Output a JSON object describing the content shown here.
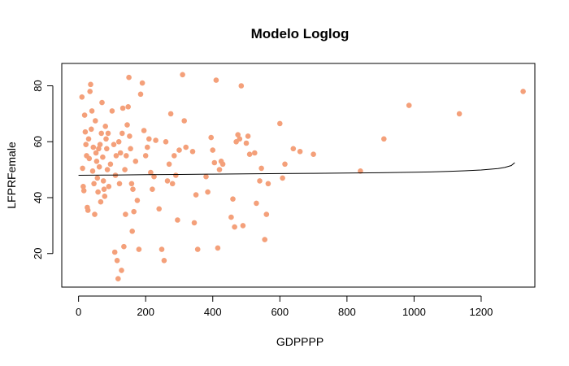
{
  "chart_data": {
    "type": "scatter",
    "title": "Modelo Loglog",
    "xlabel": "GDPPPP",
    "ylabel": "LFPRFemale",
    "xlim": [
      -50,
      1360
    ],
    "ylim": [
      8,
      88
    ],
    "xticks": [
      0,
      200,
      400,
      600,
      800,
      1000,
      1200
    ],
    "yticks": [
      20,
      40,
      60,
      80
    ],
    "grid": false,
    "legend": "none",
    "point_color": "#F4A07A",
    "line_color": "#000000",
    "points": [
      [
        10,
        76
      ],
      [
        12,
        50.5
      ],
      [
        14,
        44
      ],
      [
        16,
        42.5
      ],
      [
        18,
        69.5
      ],
      [
        20,
        63.5
      ],
      [
        22,
        59
      ],
      [
        24,
        55
      ],
      [
        26,
        36.5
      ],
      [
        28,
        35.5
      ],
      [
        30,
        61
      ],
      [
        32,
        54
      ],
      [
        34,
        78
      ],
      [
        36,
        80.5
      ],
      [
        38,
        64.5
      ],
      [
        40,
        71
      ],
      [
        42,
        49.5
      ],
      [
        44,
        58
      ],
      [
        46,
        45
      ],
      [
        48,
        34
      ],
      [
        50,
        67.5
      ],
      [
        52,
        56
      ],
      [
        54,
        53
      ],
      [
        56,
        47
      ],
      [
        58,
        42
      ],
      [
        60,
        57.5
      ],
      [
        62,
        51
      ],
      [
        64,
        59
      ],
      [
        66,
        38.5
      ],
      [
        68,
        63
      ],
      [
        70,
        74
      ],
      [
        72,
        54.5
      ],
      [
        74,
        46
      ],
      [
        76,
        43
      ],
      [
        78,
        40.5
      ],
      [
        80,
        65.5
      ],
      [
        82,
        61
      ],
      [
        84,
        57.5
      ],
      [
        86,
        50
      ],
      [
        88,
        63
      ],
      [
        90,
        44
      ],
      [
        95,
        52
      ],
      [
        100,
        71
      ],
      [
        105,
        59
      ],
      [
        108,
        20.5
      ],
      [
        110,
        48
      ],
      [
        112,
        55
      ],
      [
        115,
        17.5
      ],
      [
        118,
        11
      ],
      [
        120,
        60
      ],
      [
        122,
        45
      ],
      [
        125,
        56
      ],
      [
        128,
        14
      ],
      [
        130,
        63
      ],
      [
        132,
        72
      ],
      [
        135,
        22.5
      ],
      [
        138,
        50
      ],
      [
        140,
        34
      ],
      [
        142,
        55
      ],
      [
        145,
        66
      ],
      [
        148,
        72.5
      ],
      [
        150,
        83
      ],
      [
        152,
        62
      ],
      [
        155,
        57.5
      ],
      [
        158,
        45
      ],
      [
        160,
        28
      ],
      [
        162,
        43
      ],
      [
        165,
        35
      ],
      [
        170,
        53
      ],
      [
        175,
        39
      ],
      [
        180,
        21.5
      ],
      [
        185,
        77
      ],
      [
        190,
        81
      ],
      [
        195,
        64
      ],
      [
        200,
        55
      ],
      [
        205,
        58
      ],
      [
        210,
        61
      ],
      [
        215,
        49
      ],
      [
        220,
        43
      ],
      [
        225,
        47.5
      ],
      [
        230,
        60.5
      ],
      [
        240,
        36
      ],
      [
        248,
        21.5
      ],
      [
        255,
        17.5
      ],
      [
        260,
        60
      ],
      [
        265,
        46
      ],
      [
        270,
        52
      ],
      [
        275,
        70
      ],
      [
        280,
        45
      ],
      [
        285,
        55
      ],
      [
        290,
        48
      ],
      [
        295,
        32
      ],
      [
        300,
        57
      ],
      [
        310,
        84
      ],
      [
        315,
        67.5
      ],
      [
        320,
        58
      ],
      [
        340,
        56.5
      ],
      [
        345,
        31
      ],
      [
        350,
        41
      ],
      [
        355,
        21.5
      ],
      [
        380,
        47.5
      ],
      [
        385,
        42
      ],
      [
        395,
        61.5
      ],
      [
        400,
        57
      ],
      [
        405,
        52.5
      ],
      [
        410,
        82
      ],
      [
        415,
        22
      ],
      [
        420,
        50
      ],
      [
        425,
        53
      ],
      [
        430,
        52
      ],
      [
        455,
        33
      ],
      [
        460,
        39.5
      ],
      [
        465,
        29.5
      ],
      [
        470,
        60
      ],
      [
        475,
        62.5
      ],
      [
        480,
        61
      ],
      [
        485,
        80
      ],
      [
        490,
        30
      ],
      [
        500,
        59.5
      ],
      [
        505,
        62
      ],
      [
        510,
        55.5
      ],
      [
        525,
        56
      ],
      [
        530,
        38
      ],
      [
        540,
        46
      ],
      [
        545,
        50.5
      ],
      [
        555,
        25
      ],
      [
        560,
        34
      ],
      [
        565,
        45
      ],
      [
        600,
        66.5
      ],
      [
        608,
        47
      ],
      [
        615,
        52
      ],
      [
        640,
        57.5
      ],
      [
        660,
        56.5
      ],
      [
        700,
        55.5
      ],
      [
        840,
        49.5
      ],
      [
        910,
        61
      ],
      [
        985,
        73
      ],
      [
        1135,
        70
      ],
      [
        1325,
        78
      ]
    ],
    "fit_line": {
      "x": [
        0,
        100,
        200,
        300,
        400,
        500,
        600,
        700,
        800,
        900,
        1000,
        1050,
        1100,
        1150,
        1200,
        1250,
        1270,
        1290,
        1300
      ],
      "y": [
        48,
        48.1,
        48.2,
        48.3,
        48.4,
        48.5,
        48.6,
        48.7,
        48.8,
        48.9,
        49.1,
        49.2,
        49.4,
        49.6,
        49.9,
        50.4,
        50.8,
        51.5,
        52.5
      ]
    }
  }
}
